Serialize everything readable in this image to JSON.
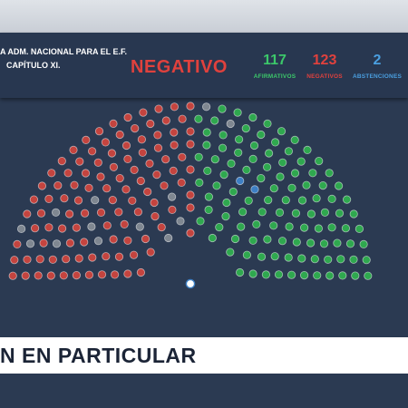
{
  "header": {
    "motion_line1": "A ADM. NACIONAL PARA EL E.F.",
    "motion_line2": "CAPÍTULO XI.",
    "result": "NEGATIVO",
    "counts": {
      "afirmativos": {
        "value": "117",
        "label": "AFIRMATIVOS",
        "color": "#3cc86a"
      },
      "negativos": {
        "value": "123",
        "label": "NEGATIVOS",
        "color": "#e0413d"
      },
      "abstenciones": {
        "value": "2",
        "label": "ABSTENCIONES",
        "color": "#4a9fe0"
      }
    }
  },
  "chamber": {
    "seat_colors": {
      "afirmativo": "#2fa84f",
      "negativo": "#c4443f",
      "abstencion": "#3d7fc4",
      "ausente": "#7f8791"
    },
    "president_seat": "#ffffff"
  },
  "lower_band": {
    "text": "N EN PARTICULAR"
  }
}
